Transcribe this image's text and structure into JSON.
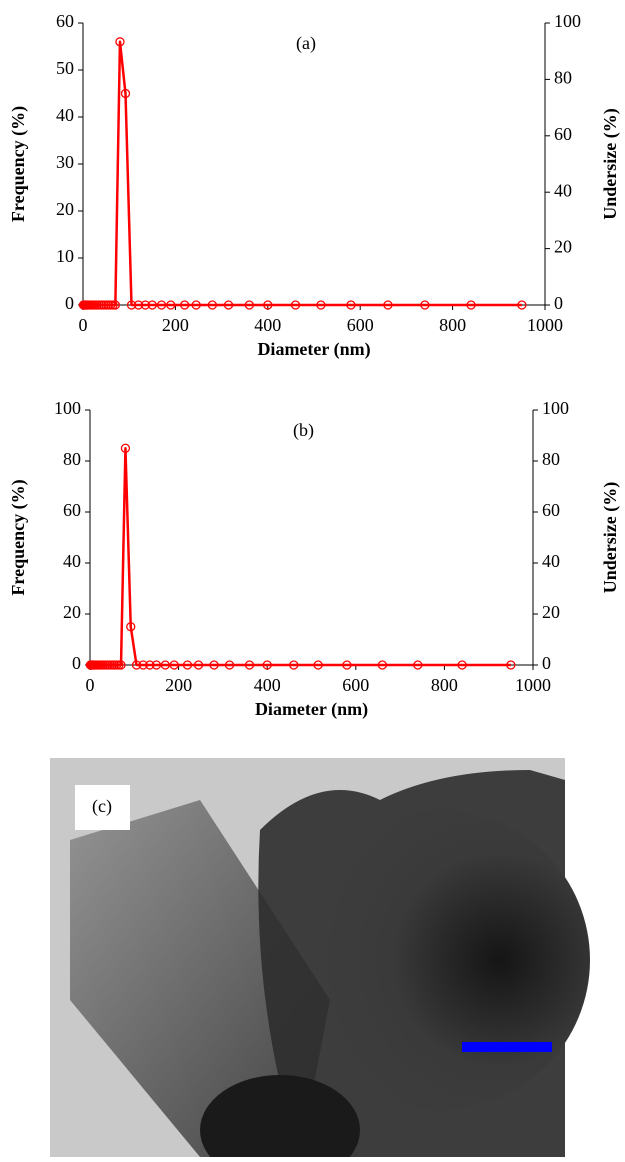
{
  "chart_data": [
    {
      "type": "line",
      "annotation": "(a)",
      "xlabel": "Diameter (nm)",
      "ylabel": "Frequency (%)",
      "y2label": "Undersize (%)",
      "x": [
        1,
        2,
        3,
        4,
        5,
        6,
        8,
        10,
        12,
        15,
        18,
        22,
        26,
        30,
        35,
        40,
        45,
        50,
        55,
        60,
        65,
        70,
        80,
        92,
        105,
        120,
        135,
        150,
        170,
        190,
        220,
        245,
        280,
        315,
        360,
        400,
        460,
        515,
        580,
        660,
        740,
        840,
        950
      ],
      "values": [
        0,
        0,
        0,
        0,
        0,
        0,
        0,
        0,
        0,
        0,
        0,
        0,
        0,
        0,
        0,
        0,
        0,
        0,
        0,
        0,
        0,
        0,
        56,
        45,
        0,
        0,
        0,
        0,
        0,
        0,
        0,
        0,
        0,
        0,
        0,
        0,
        0,
        0,
        0,
        0,
        0,
        0,
        0
      ],
      "color": "#ff0000",
      "xlim": [
        0,
        1000
      ],
      "xticks": [
        0,
        200,
        400,
        600,
        800,
        1000
      ],
      "ylim": [
        0,
        60
      ],
      "yticks": [
        0,
        10,
        20,
        30,
        40,
        50,
        60
      ],
      "y2lim": [
        0,
        100
      ],
      "y2ticks": [
        0,
        20,
        40,
        60,
        80,
        100
      ]
    },
    {
      "type": "line",
      "annotation": "(b)",
      "xlabel": "Diameter (nm)",
      "ylabel": "Frequency (%)",
      "y2label": "Undersize (%)",
      "x": [
        1,
        2,
        3,
        4,
        5,
        6,
        8,
        10,
        12,
        15,
        18,
        22,
        26,
        30,
        35,
        40,
        45,
        50,
        55,
        60,
        65,
        70,
        80,
        92,
        105,
        120,
        135,
        150,
        170,
        190,
        220,
        245,
        280,
        315,
        360,
        400,
        460,
        515,
        580,
        660,
        740,
        840,
        950
      ],
      "values": [
        0,
        0,
        0,
        0,
        0,
        0,
        0,
        0,
        0,
        0,
        0,
        0,
        0,
        0,
        0,
        0,
        0,
        0,
        0,
        0,
        0,
        0,
        85,
        15,
        0,
        0,
        0,
        0,
        0,
        0,
        0,
        0,
        0,
        0,
        0,
        0,
        0,
        0,
        0,
        0,
        0,
        0,
        0
      ],
      "color": "#ff0000",
      "xlim": [
        0,
        1000
      ],
      "xticks": [
        0,
        200,
        400,
        600,
        800,
        1000
      ],
      "ylim": [
        0,
        100
      ],
      "yticks": [
        0,
        20,
        40,
        60,
        80,
        100
      ],
      "y2lim": [
        0,
        100
      ],
      "y2ticks": [
        0,
        20,
        40,
        60,
        80,
        100
      ]
    }
  ],
  "image": {
    "label": "(c)"
  }
}
